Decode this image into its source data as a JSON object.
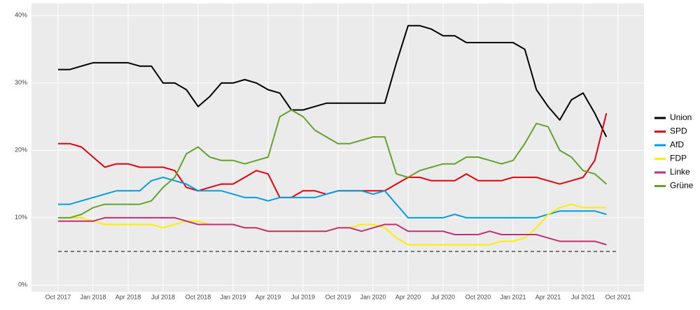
{
  "chart_data": {
    "type": "line",
    "x": [
      "Oct 2017",
      "Nov 2017",
      "Dec 2017",
      "Jan 2018",
      "Feb 2018",
      "Mar 2018",
      "Apr 2018",
      "May 2018",
      "Jun 2018",
      "Jul 2018",
      "Aug 2018",
      "Sep 2018",
      "Oct 2018",
      "Nov 2018",
      "Dec 2018",
      "Jan 2019",
      "Feb 2019",
      "Mar 2019",
      "Apr 2019",
      "May 2019",
      "Jun 2019",
      "Jul 2019",
      "Aug 2019",
      "Sep 2019",
      "Oct 2019",
      "Nov 2019",
      "Dec 2019",
      "Jan 2020",
      "Feb 2020",
      "Mar 2020",
      "Apr 2020",
      "May 2020",
      "Jun 2020",
      "Jul 2020",
      "Aug 2020",
      "Sep 2020",
      "Oct 2020",
      "Nov 2020",
      "Dec 2020",
      "Jan 2021",
      "Feb 2021",
      "Mar 2021",
      "Apr 2021",
      "May 2021",
      "Jun 2021",
      "Jul 2021",
      "Aug 2021",
      "Sep 2021"
    ],
    "series": [
      {
        "name": "Union",
        "color": "#000000",
        "values": [
          32,
          32,
          32.5,
          33,
          33,
          33,
          33,
          32.5,
          32.5,
          30,
          30,
          29,
          26.5,
          28,
          30,
          30,
          30.5,
          30,
          29,
          28.5,
          26,
          26,
          26.5,
          27,
          27,
          27,
          27,
          27,
          27,
          33,
          38.5,
          38.5,
          38,
          37,
          37,
          36,
          36,
          36,
          36,
          36,
          35,
          29,
          26.5,
          24.5,
          27.5,
          28.5,
          25.5,
          22
        ]
      },
      {
        "name": "SPD",
        "color": "#e3000f",
        "values": [
          21,
          21,
          20.5,
          19,
          17.5,
          18,
          18,
          17.5,
          17.5,
          17.5,
          17,
          14.5,
          14,
          14.5,
          15,
          15,
          16,
          17,
          16.5,
          13,
          13,
          14,
          14,
          13.5,
          14,
          14,
          14,
          14,
          14,
          15,
          16,
          16,
          15.5,
          15.5,
          15.5,
          16.5,
          15.5,
          15.5,
          15.5,
          16,
          16,
          16,
          15.5,
          15,
          15.5,
          16,
          18.5,
          25.5
        ]
      },
      {
        "name": "AfD",
        "color": "#009ee0",
        "values": [
          12,
          12,
          12.5,
          13,
          13.5,
          14,
          14,
          14,
          15.5,
          16,
          15.5,
          15,
          14,
          14,
          14,
          13.5,
          13,
          13,
          12.5,
          13,
          13,
          13,
          13,
          13.5,
          14,
          14,
          14,
          13.5,
          14,
          12,
          10,
          10,
          10,
          10,
          10.5,
          10,
          10,
          10,
          10,
          10,
          10,
          10,
          10.5,
          11,
          11,
          11,
          11,
          10.5
        ]
      },
      {
        "name": "FDP",
        "color": "#ffed00",
        "values": [
          10,
          10,
          10,
          9.5,
          9,
          9,
          9,
          9,
          9,
          8.5,
          9,
          9.5,
          9.5,
          9,
          9,
          9,
          8.5,
          8.5,
          8,
          8,
          8,
          8,
          8,
          8,
          8.5,
          8.5,
          9,
          9,
          8.5,
          7,
          6,
          6,
          6,
          6,
          6,
          6,
          6,
          6,
          6.5,
          6.5,
          7,
          8.5,
          10.5,
          11.5,
          12,
          11.5,
          11.5,
          11.5
        ]
      },
      {
        "name": "Linke",
        "color": "#be3075",
        "values": [
          9.5,
          9.5,
          9.5,
          9.5,
          10,
          10,
          10,
          10,
          10,
          10,
          10,
          9.5,
          9,
          9,
          9,
          9,
          8.5,
          8.5,
          8,
          8,
          8,
          8,
          8,
          8,
          8.5,
          8.5,
          8,
          8.5,
          9,
          9,
          8,
          8,
          8,
          8,
          7.5,
          7.5,
          7.5,
          8,
          7.5,
          7.5,
          7.5,
          7.5,
          7,
          6.5,
          6.5,
          6.5,
          6.5,
          6
        ]
      },
      {
        "name": "Grüne",
        "color": "#64a12d",
        "values": [
          10,
          10,
          10.5,
          11.5,
          12,
          12,
          12,
          12,
          12.5,
          14.5,
          16,
          19.5,
          20.5,
          19,
          18.5,
          18.5,
          18,
          18.5,
          19,
          25,
          26,
          25,
          23,
          22,
          21,
          21,
          21.5,
          22,
          22,
          16.5,
          16,
          17,
          17.5,
          18,
          18,
          19,
          19,
          18.5,
          18,
          18.5,
          21,
          24,
          23.5,
          20,
          19,
          17,
          16.5,
          15
        ]
      }
    ],
    "threshold": 5,
    "ylim": [
      -1,
      41.8
    ],
    "yticks": [
      {
        "value": 0,
        "label": "0%"
      },
      {
        "value": 10,
        "label": "10%"
      },
      {
        "value": 20,
        "label": "20%"
      },
      {
        "value": 30,
        "label": "30%"
      },
      {
        "value": 40,
        "label": "40%"
      }
    ],
    "xticks": [
      "Oct 2017",
      "Jan 2018",
      "Apr 2018",
      "Jul 2018",
      "Oct 2018",
      "Jan 2019",
      "Apr 2019",
      "Jul 2019",
      "Oct 2019",
      "Jan 2020",
      "Apr 2020",
      "Jul 2020",
      "Oct 2020",
      "Jan 2021",
      "Apr 2021",
      "Jul 2021",
      "Oct 2021"
    ],
    "grid": true,
    "legend": "right"
  }
}
